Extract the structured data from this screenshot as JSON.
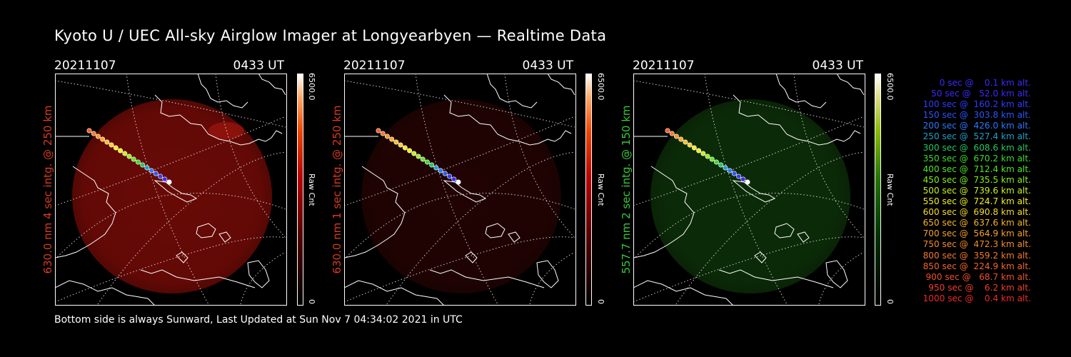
{
  "title": "Kyoto U / UEC All-sky Airglow Imager at Longyearbyen — Realtime Data",
  "footer": "Bottom side is always Sunward, Last Updated at Sun Nov  7 04:34:02 2021 in UTC",
  "panels": [
    {
      "date": "20211107",
      "time": "0433 UT",
      "label": "630.0 nm 4 sec intg. @ 250 km",
      "label_color": "#d63a1e",
      "cbar_max": "6500.0",
      "cbar_min": "0",
      "cbar_unit": "Raw Cnt",
      "glow": "#8a0d08",
      "glow_opacity": 0.75
    },
    {
      "date": "20211107",
      "time": "0433 UT",
      "label": "630.0 nm 1 sec intg. @ 250 km",
      "label_color": "#d63a1e",
      "cbar_max": "6500.0",
      "cbar_min": "0",
      "cbar_unit": "Raw Cnt",
      "glow": "#3a0604",
      "glow_opacity": 0.55
    },
    {
      "date": "20211107",
      "time": "0433 UT",
      "label": "557.7 nm 2 sec intg. @ 150 km",
      "label_color": "#37c837",
      "cbar_max": "6500.0",
      "cbar_min": "0",
      "cbar_unit": "Raw Cnt",
      "glow": "#0f3a0a",
      "glow_opacity": 0.75
    }
  ],
  "legend": [
    {
      "text": "0 sec @    0.1 km alt.",
      "color": "#3c28ff"
    },
    {
      "text": "50 sec @   52.0 km alt.",
      "color": "#3c28ff"
    },
    {
      "text": "100 sec @  160.2 km alt.",
      "color": "#2e3cff"
    },
    {
      "text": "150 sec @  303.8 km alt.",
      "color": "#2a55ff"
    },
    {
      "text": "200 sec @  426.0 km alt.",
      "color": "#2a78ff"
    },
    {
      "text": "250 sec @  527.4 km alt.",
      "color": "#1fa0c8"
    },
    {
      "text": "300 sec @  608.6 km alt.",
      "color": "#22c864"
    },
    {
      "text": "350 sec @  670.2 km alt.",
      "color": "#3cdc28"
    },
    {
      "text": "400 sec @  712.4 km alt.",
      "color": "#50e61e"
    },
    {
      "text": "450 sec @  735.5 km alt.",
      "color": "#82f01e"
    },
    {
      "text": "500 sec @  739.6 km alt.",
      "color": "#c8f01e"
    },
    {
      "text": "550 sec @  724.7 km alt.",
      "color": "#f0f01e"
    },
    {
      "text": "600 sec @  690.8 km alt.",
      "color": "#f5dc28"
    },
    {
      "text": "650 sec @  637.6 km alt.",
      "color": "#f5b428"
    },
    {
      "text": "700 sec @  564.9 km alt.",
      "color": "#f5a028"
    },
    {
      "text": "750 sec @  472.3 km alt.",
      "color": "#f58c28"
    },
    {
      "text": "800 sec @  359.2 km alt.",
      "color": "#f57828"
    },
    {
      "text": "850 sec @  224.9 km alt.",
      "color": "#f56428"
    },
    {
      "text": "900 sec @   68.7 km alt.",
      "color": "#f05028"
    },
    {
      "text": "950 sec @    6.2 km alt.",
      "color": "#f03c28"
    },
    {
      "text": "1000 sec @    0.4 km alt.",
      "color": "#f02828"
    }
  ],
  "track_colors": [
    "#ff5a28",
    "#ff7828",
    "#ff9628",
    "#ffaa28",
    "#ffbe28",
    "#ffd228",
    "#ffe628",
    "#f0f01e",
    "#c8f01e",
    "#96f01e",
    "#64e628",
    "#3cdc28",
    "#22c864",
    "#1fa0c8",
    "#2a78ff",
    "#2a55ff",
    "#2e3cff",
    "#3c28ff",
    "#ffffff"
  ]
}
